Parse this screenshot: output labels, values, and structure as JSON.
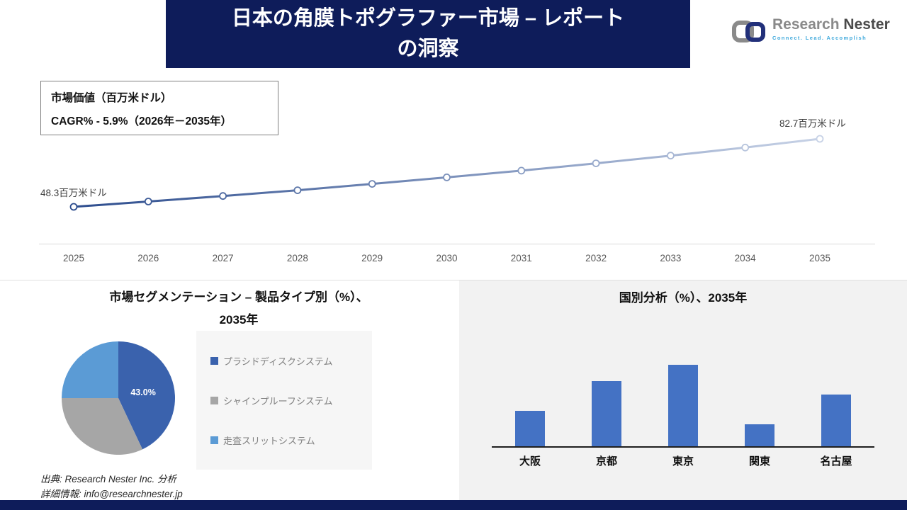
{
  "header": {
    "title_line1": "日本の角膜トポグラファー市場 – レポート",
    "title_line2": "の洞察",
    "banner_color": "#0e1c5a",
    "logo": {
      "name_part1": "Research",
      "name_part2": "Nester",
      "tagline": "Connect. Lead. Accomplish"
    }
  },
  "line_section": {
    "label_line1": "市場価値（百万米ドル）",
    "label_line2": "CAGR% - 5.9%（2026年－2035年）",
    "start_label": "48.3百万米ドル",
    "end_label": "82.7百万米ドル"
  },
  "pie_section": {
    "title_line1": "市場セグメンテーション – 製品タイプ別（%）、",
    "title_line2": "2035年",
    "source_line1": "出典: Research Nester Inc. 分析",
    "source_line2": "詳細情報: info@researchnester.jp"
  },
  "bar_section": {
    "title": "国別分析（%）、2035年"
  },
  "chart_data": [
    {
      "type": "line",
      "title": "市場価値（百万米ドル）",
      "x": [
        "2025",
        "2026",
        "2027",
        "2028",
        "2029",
        "2030",
        "2031",
        "2032",
        "2033",
        "2034",
        "2035"
      ],
      "values": [
        48.3,
        51.0,
        53.8,
        56.7,
        59.9,
        63.2,
        66.6,
        70.3,
        74.2,
        78.3,
        82.7
      ],
      "start_label": "48.3百万米ドル",
      "end_label": "82.7百万米ドル",
      "cagr": "5.9%",
      "cagr_period": "2026年－2035年",
      "ylabel": "百万米ドル",
      "line_color_start": "#2d4d8e",
      "line_color_end": "#c7d2e6",
      "marker": "white-circle",
      "grid": false
    },
    {
      "type": "pie",
      "title": "市場セグメンテーション – 製品タイプ別（%）、2035年",
      "segments": [
        {
          "label": "プラシドディスクシステム",
          "value": 43.0,
          "color": "#3a62ad"
        },
        {
          "label": "シャインプルーフシステム",
          "value": 32.0,
          "color": "#a6a6a6"
        },
        {
          "label": "走査スリットシステム",
          "value": 25.0,
          "color": "#5b9bd5"
        }
      ],
      "data_label": "43.0%",
      "legend_position": "right"
    },
    {
      "type": "bar",
      "title": "国別分析（%）、2035年",
      "categories": [
        "大阪",
        "京都",
        "東京",
        "関東",
        "名古屋"
      ],
      "values": [
        18,
        33,
        41,
        11,
        26
      ],
      "bar_color": "#4472c4",
      "grid": false,
      "ylim": [
        0,
        41
      ]
    }
  ]
}
